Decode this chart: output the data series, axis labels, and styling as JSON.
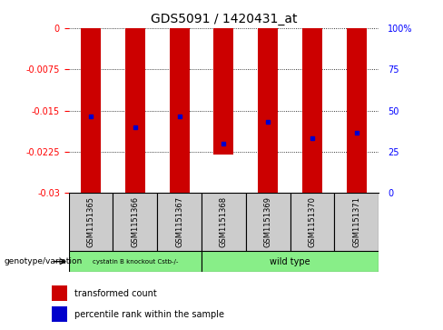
{
  "title": "GDS5091 / 1420431_at",
  "samples": [
    "GSM1151365",
    "GSM1151366",
    "GSM1151367",
    "GSM1151368",
    "GSM1151369",
    "GSM1151370",
    "GSM1151371"
  ],
  "bar_values": [
    -0.03,
    -0.03,
    -0.03,
    -0.023,
    -0.03,
    -0.03,
    -0.03
  ],
  "percentile_values": [
    -0.016,
    -0.018,
    -0.016,
    -0.021,
    -0.017,
    -0.02,
    -0.019
  ],
  "ylim": [
    -0.03,
    0
  ],
  "yticks_left": [
    0,
    -0.0075,
    -0.015,
    -0.0225,
    -0.03
  ],
  "ytick_labels_left": [
    "0",
    "-0.0075",
    "-0.015",
    "-0.0225",
    "-0.03"
  ],
  "yticks_right": [
    0,
    25,
    50,
    75,
    100
  ],
  "ytick_labels_right": [
    "0",
    "25",
    "50",
    "75",
    "100%"
  ],
  "bar_color": "#cc0000",
  "dot_color": "#0000cc",
  "bar_width": 0.45,
  "group1": {
    "label": "cystatin B knockout Cstb-/-",
    "samples": [
      0,
      1,
      2
    ],
    "color": "#88ee88"
  },
  "group2": {
    "label": "wild type",
    "samples": [
      3,
      4,
      5,
      6
    ],
    "color": "#88ee88"
  },
  "genotype_label": "genotype/variation",
  "legend1_label": "transformed count",
  "legend2_label": "percentile rank within the sample",
  "grid_color": "#000000",
  "bg_color": "#ffffff",
  "label_box_color": "#cccccc"
}
